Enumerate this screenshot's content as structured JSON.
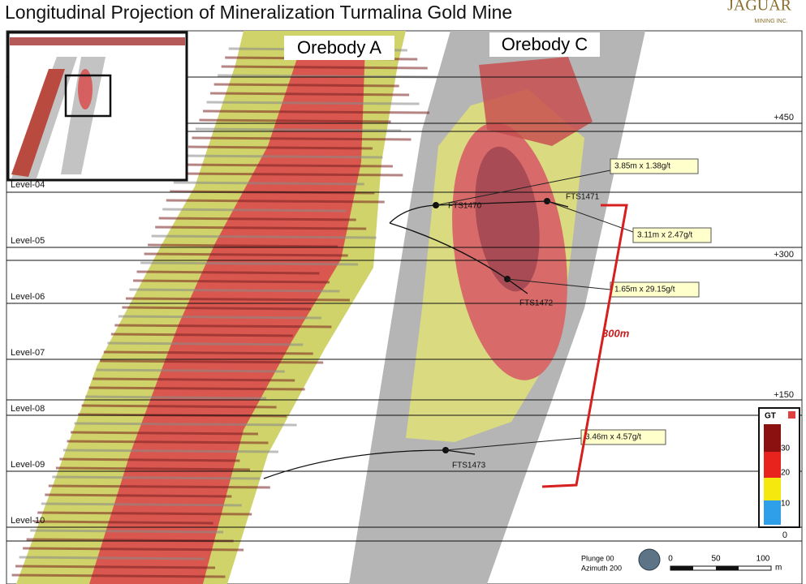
{
  "title": "Longitudinal Projection of Mineralization Turmalina Gold Mine",
  "logo": {
    "name": "JAGUAR",
    "subtitle": "MINING INC."
  },
  "orebodies": [
    "Orebody A",
    "Orebody C"
  ],
  "levels": [
    "Level-04",
    "Level-05",
    "Level-06",
    "Level-07",
    "Level-08",
    "Level-09",
    "Level-10"
  ],
  "elevations": [
    "+450",
    "+300",
    "+150",
    "0"
  ],
  "drill_holes": [
    {
      "name": "FTS1470",
      "intercept": "3.85m x 1.38g/t"
    },
    {
      "name": "FTS1471",
      "intercept": "3.11m x 2.47g/t"
    },
    {
      "name": "FTS1472",
      "intercept": "1.65m x 29.15g/t"
    },
    {
      "name": "FTS1473",
      "intercept": "3.46m x 4.57g/t"
    }
  ],
  "span_label": "300m",
  "legend": {
    "title": "GT",
    "labels": [
      "30",
      "20",
      "10"
    ]
  },
  "orientation": {
    "plunge": "Plunge 00",
    "azimuth": "Azimuth 200"
  },
  "scale": {
    "labels": [
      "0",
      "50",
      "100"
    ],
    "unit": "m"
  }
}
